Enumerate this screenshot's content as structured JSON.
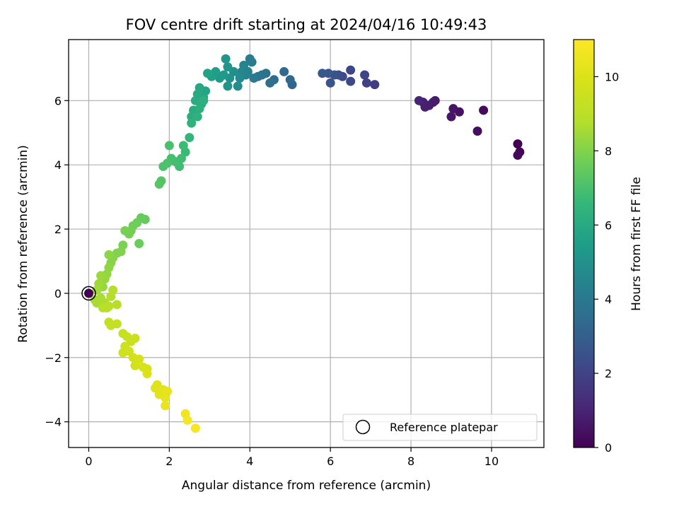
{
  "chart_data": {
    "type": "scatter",
    "title": "FOV centre drift starting at 2024/04/16 10:49:43",
    "xlabel": "Angular distance from reference (arcmin)",
    "ylabel": "Rotation from reference (arcmin)",
    "xlim": [
      -0.5,
      11.3
    ],
    "ylim": [
      -4.8,
      7.9
    ],
    "xticks": [
      "0",
      "2",
      "4",
      "6",
      "8",
      "10"
    ],
    "yticks": [
      "−4",
      "−2",
      "0",
      "2",
      "4",
      "6"
    ],
    "grid": true,
    "legend": {
      "position": "bottom-right",
      "entries": [
        {
          "label": "Reference platepar",
          "marker": "open-circle"
        }
      ]
    },
    "colorbar": {
      "label": "Hours from first FF file",
      "colormap": "viridis",
      "range": [
        0,
        11
      ],
      "ticks": [
        "0",
        "2",
        "4",
        "6",
        "8",
        "10"
      ]
    },
    "reference_point": {
      "x": 0,
      "y": 0
    },
    "series": [
      {
        "points": [
          [
            10.65,
            4.65,
            0.0
          ],
          [
            10.7,
            4.4,
            0.1
          ],
          [
            10.65,
            4.3,
            0.2
          ],
          [
            9.8,
            5.7,
            0.3
          ],
          [
            9.65,
            5.05,
            0.4
          ],
          [
            9.2,
            5.65,
            0.5
          ],
          [
            9.05,
            5.75,
            0.55
          ],
          [
            9.0,
            5.5,
            0.6
          ],
          [
            8.6,
            6.0,
            0.7
          ],
          [
            8.55,
            5.95,
            0.75
          ],
          [
            8.45,
            5.85,
            0.8
          ],
          [
            8.35,
            5.8,
            0.85
          ],
          [
            8.3,
            5.95,
            0.9
          ],
          [
            8.2,
            6.0,
            1.0
          ],
          [
            7.1,
            6.5,
            1.8
          ],
          [
            6.9,
            6.55,
            1.9
          ],
          [
            6.85,
            6.8,
            2.0
          ],
          [
            6.5,
            6.95,
            2.1
          ],
          [
            6.5,
            6.6,
            2.2
          ],
          [
            6.3,
            6.75,
            2.3
          ],
          [
            6.2,
            6.8,
            2.4
          ],
          [
            6.1,
            6.8,
            2.5
          ],
          [
            6.0,
            6.55,
            2.6
          ],
          [
            5.95,
            6.85,
            2.7
          ],
          [
            5.8,
            6.85,
            2.8
          ],
          [
            5.05,
            6.5,
            3.2
          ],
          [
            5.0,
            6.65,
            3.3
          ],
          [
            4.85,
            6.9,
            3.4
          ],
          [
            4.6,
            6.65,
            3.5
          ],
          [
            4.5,
            6.55,
            3.6
          ],
          [
            4.4,
            6.85,
            3.7
          ],
          [
            4.3,
            6.8,
            3.8
          ],
          [
            4.2,
            6.75,
            3.9
          ],
          [
            4.1,
            6.7,
            4.0
          ],
          [
            4.05,
            7.2,
            4.1
          ],
          [
            4.0,
            7.3,
            4.2
          ],
          [
            3.95,
            6.9,
            4.3
          ],
          [
            3.9,
            6.8,
            4.4
          ],
          [
            3.85,
            7.1,
            4.5
          ],
          [
            3.8,
            6.9,
            4.6
          ],
          [
            3.75,
            6.7,
            4.7
          ],
          [
            3.7,
            6.45,
            4.8
          ],
          [
            3.6,
            6.9,
            4.9
          ],
          [
            3.5,
            6.7,
            5.0
          ],
          [
            3.45,
            6.45,
            5.1
          ],
          [
            3.45,
            7.05,
            5.15
          ],
          [
            3.4,
            7.3,
            5.2
          ],
          [
            3.35,
            6.8,
            5.3
          ],
          [
            3.25,
            6.7,
            5.4
          ],
          [
            3.15,
            6.9,
            5.5
          ],
          [
            3.05,
            6.75,
            5.6
          ],
          [
            2.95,
            6.85,
            5.7
          ],
          [
            2.9,
            6.3,
            5.8
          ],
          [
            2.85,
            6.1,
            5.85
          ],
          [
            2.8,
            5.9,
            5.9
          ],
          [
            2.75,
            6.4,
            5.95
          ],
          [
            2.7,
            6.2,
            6.0
          ],
          [
            2.65,
            6.0,
            6.05
          ],
          [
            2.6,
            5.7,
            6.1
          ],
          [
            2.55,
            5.5,
            6.15
          ],
          [
            2.75,
            5.75,
            6.2
          ],
          [
            2.85,
            6.0,
            6.25
          ],
          [
            2.7,
            5.5,
            6.3
          ],
          [
            2.55,
            5.3,
            6.4
          ],
          [
            2.5,
            4.85,
            6.5
          ],
          [
            2.4,
            4.4,
            6.7
          ],
          [
            2.35,
            4.6,
            6.75
          ],
          [
            2.3,
            4.2,
            6.8
          ],
          [
            2.25,
            3.95,
            6.85
          ],
          [
            2.15,
            4.1,
            6.9
          ],
          [
            2.05,
            4.2,
            6.95
          ],
          [
            2.0,
            4.6,
            7.0
          ],
          [
            1.95,
            4.05,
            7.05
          ],
          [
            1.85,
            3.95,
            7.1
          ],
          [
            1.8,
            3.5,
            7.2
          ],
          [
            1.75,
            3.4,
            7.25
          ],
          [
            1.4,
            2.3,
            7.5
          ],
          [
            1.3,
            2.35,
            7.55
          ],
          [
            1.25,
            1.55,
            7.6
          ],
          [
            1.2,
            2.2,
            7.65
          ],
          [
            1.1,
            2.1,
            7.7
          ],
          [
            1.05,
            1.95,
            7.75
          ],
          [
            1.0,
            1.85,
            7.8
          ],
          [
            0.9,
            1.95,
            7.85
          ],
          [
            0.85,
            1.5,
            7.9
          ],
          [
            0.8,
            1.3,
            7.95
          ],
          [
            0.7,
            1.25,
            8.0
          ],
          [
            0.6,
            1.1,
            8.05
          ],
          [
            0.55,
            0.95,
            8.1
          ],
          [
            0.5,
            1.2,
            8.15
          ],
          [
            0.5,
            0.8,
            8.2
          ],
          [
            0.45,
            0.6,
            8.25
          ],
          [
            0.4,
            0.45,
            8.3
          ],
          [
            0.35,
            0.2,
            8.35
          ],
          [
            0.3,
            0.55,
            8.4
          ],
          [
            0.25,
            0.3,
            8.45
          ],
          [
            0.2,
            0.1,
            8.5
          ],
          [
            0.15,
            -0.2,
            8.55
          ],
          [
            0.2,
            -0.3,
            8.6
          ],
          [
            0.3,
            -0.15,
            8.65
          ],
          [
            0.4,
            -0.3,
            8.7
          ],
          [
            0.45,
            -0.45,
            8.75
          ],
          [
            0.55,
            -0.1,
            8.8
          ],
          [
            0.6,
            0.1,
            8.85
          ],
          [
            0.7,
            -0.35,
            8.9
          ],
          [
            0.5,
            -0.4,
            8.95
          ],
          [
            0.35,
            -0.45,
            9.0
          ],
          [
            0.5,
            -0.9,
            9.2
          ],
          [
            0.55,
            -1.0,
            9.25
          ],
          [
            0.7,
            -0.95,
            9.3
          ],
          [
            0.85,
            -1.25,
            9.35
          ],
          [
            0.95,
            -1.35,
            9.4
          ],
          [
            1.05,
            -1.5,
            9.45
          ],
          [
            1.15,
            -1.4,
            9.5
          ],
          [
            0.9,
            -1.65,
            9.55
          ],
          [
            0.85,
            -1.85,
            9.6
          ],
          [
            1.0,
            -1.8,
            9.65
          ],
          [
            1.1,
            -2.0,
            9.7
          ],
          [
            1.15,
            -2.25,
            9.75
          ],
          [
            1.25,
            -2.05,
            9.8
          ],
          [
            1.35,
            -2.3,
            9.85
          ],
          [
            1.45,
            -2.35,
            9.9
          ],
          [
            1.45,
            -2.5,
            9.95
          ],
          [
            1.65,
            -2.95,
            10.1
          ],
          [
            1.7,
            -2.85,
            10.15
          ],
          [
            1.75,
            -3.15,
            10.2
          ],
          [
            1.85,
            -3.0,
            10.25
          ],
          [
            1.9,
            -3.25,
            10.3
          ],
          [
            1.95,
            -3.05,
            10.35
          ],
          [
            1.9,
            -3.5,
            10.4
          ],
          [
            2.4,
            -3.75,
            10.6
          ],
          [
            2.45,
            -3.95,
            10.7
          ],
          [
            2.65,
            -4.2,
            10.8
          ]
        ]
      }
    ]
  }
}
